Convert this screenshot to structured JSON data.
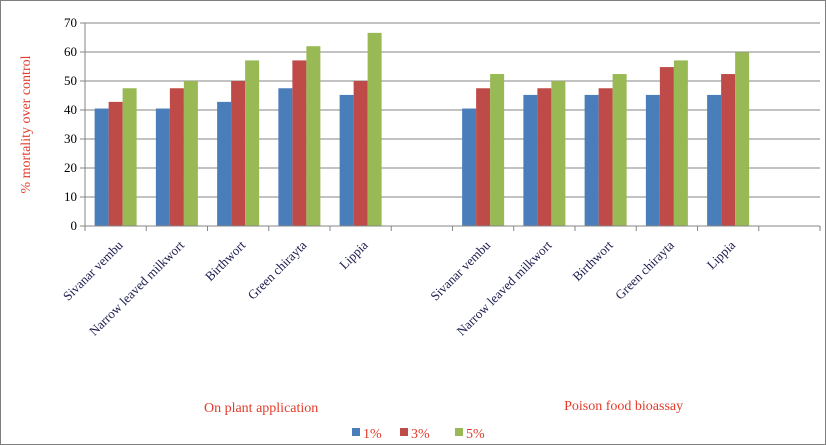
{
  "chart_data": {
    "type": "bar",
    "title": "",
    "xlabel": "",
    "ylabel": "% mortality over control",
    "ylim": [
      0,
      70
    ],
    "yticks": [
      0,
      10,
      20,
      30,
      40,
      50,
      60,
      70
    ],
    "grid": true,
    "legend_position": "bottom",
    "groups": [
      "On plant application",
      "Poison food bioassay"
    ],
    "categories": [
      "Sivanar vembu",
      "Narrow leaved milkwort",
      "Birthwort",
      "Green chirayta",
      "Lippia",
      "",
      "Sivanar vembu",
      "Narrow leaved milkwort",
      "Birthwort",
      "Green chirayta",
      "Lippia",
      ""
    ],
    "series": [
      {
        "name": "1%",
        "color": "#4a7ebb",
        "values": [
          40.5,
          40.5,
          42.8,
          47.5,
          45.2,
          null,
          40.5,
          45.2,
          45.2,
          45.2,
          45.2,
          null
        ]
      },
      {
        "name": "3%",
        "color": "#be4b48",
        "values": [
          42.8,
          47.5,
          50.0,
          57.1,
          50.0,
          null,
          47.5,
          47.5,
          47.5,
          54.8,
          52.4,
          null
        ]
      },
      {
        "name": "5%",
        "color": "#98b954",
        "values": [
          47.5,
          50.0,
          57.1,
          62.0,
          66.6,
          null,
          52.4,
          50.0,
          52.4,
          57.1,
          59.9,
          null
        ]
      }
    ]
  }
}
